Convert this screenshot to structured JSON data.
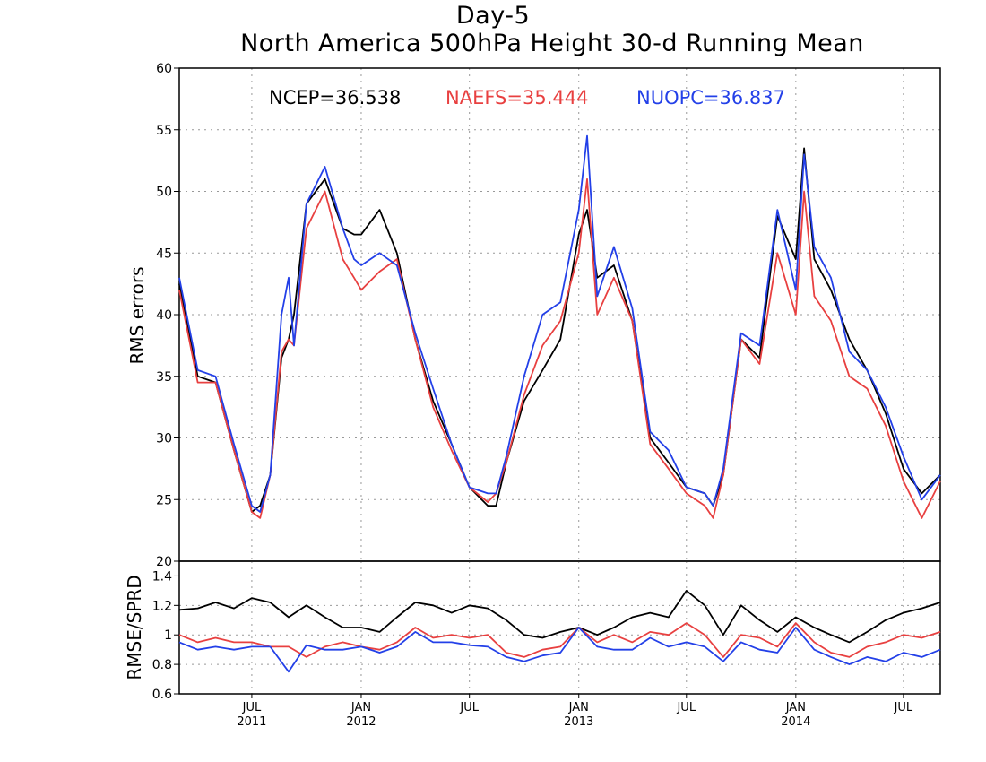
{
  "title": "Day-5",
  "subtitle": "North America 500hPa Height 30-d Running Mean",
  "colors": {
    "NCEP": "#000000",
    "NAEFS": "#e84040",
    "NUOPC": "#2340e8"
  },
  "legend_text": [
    {
      "series": "NCEP",
      "text": "NCEP=36.538"
    },
    {
      "series": "NAEFS",
      "text": "NAEFS=35.444"
    },
    {
      "series": "NUOPC",
      "text": "NUOPC=36.837"
    }
  ],
  "chart_data": [
    {
      "type": "line",
      "ylabel": "RMS errors",
      "ylim": [
        20,
        60
      ],
      "yticks": [
        20,
        25,
        30,
        35,
        40,
        45,
        50,
        55,
        60
      ],
      "xlim": [
        "2011-03-01",
        "2014-09-01"
      ],
      "grid": true,
      "legend_placement": "top-center",
      "x": [
        "2011-03-01",
        "2011-04-01",
        "2011-05-01",
        "2011-06-01",
        "2011-07-01",
        "2011-07-15",
        "2011-08-01",
        "2011-08-20",
        "2011-09-01",
        "2011-09-10",
        "2011-10-01",
        "2011-11-01",
        "2011-12-01",
        "2011-12-20",
        "2012-01-01",
        "2012-02-01",
        "2012-03-01",
        "2012-04-01",
        "2012-05-01",
        "2012-06-01",
        "2012-07-01",
        "2012-08-01",
        "2012-08-15",
        "2012-09-01",
        "2012-10-01",
        "2012-11-01",
        "2012-12-01",
        "2013-01-01",
        "2013-01-15",
        "2013-02-01",
        "2013-03-01",
        "2013-04-01",
        "2013-05-01",
        "2013-06-01",
        "2013-07-01",
        "2013-08-01",
        "2013-08-15",
        "2013-09-01",
        "2013-10-01",
        "2013-11-01",
        "2013-12-01",
        "2014-01-01",
        "2014-01-15",
        "2014-02-01",
        "2014-03-01",
        "2014-04-01",
        "2014-05-01",
        "2014-06-01",
        "2014-07-01",
        "2014-08-01",
        "2014-09-01"
      ],
      "series": [
        {
          "name": "NCEP",
          "values": [
            42.5,
            35.0,
            34.5,
            29.0,
            24.0,
            24.5,
            27.0,
            36.5,
            38.0,
            40.0,
            49.0,
            51.0,
            47.0,
            46.5,
            46.5,
            48.5,
            45.0,
            38.0,
            33.0,
            29.5,
            26.0,
            24.5,
            24.5,
            28.0,
            33.0,
            35.5,
            38.0,
            46.5,
            48.5,
            43.0,
            44.0,
            39.5,
            30.0,
            28.0,
            26.0,
            25.5,
            24.5,
            27.0,
            38.0,
            36.5,
            48.0,
            44.5,
            53.5,
            44.5,
            42.0,
            38.0,
            35.5,
            32.0,
            27.5,
            25.5,
            27.0
          ]
        },
        {
          "name": "NAEFS",
          "values": [
            42.0,
            34.5,
            34.5,
            29.0,
            24.0,
            23.5,
            27.0,
            37.0,
            38.0,
            37.5,
            47.0,
            50.0,
            44.5,
            43.0,
            42.0,
            43.5,
            44.5,
            38.0,
            32.5,
            29.0,
            26.0,
            24.8,
            25.5,
            28.0,
            33.5,
            37.5,
            39.5,
            45.0,
            51.0,
            40.0,
            43.0,
            39.5,
            29.5,
            27.5,
            25.5,
            24.5,
            23.5,
            27.0,
            38.0,
            36.0,
            45.0,
            40.0,
            50.0,
            41.5,
            39.5,
            35.0,
            34.0,
            31.0,
            26.5,
            23.5,
            26.5
          ]
        },
        {
          "name": "NUOPC",
          "values": [
            43.0,
            35.5,
            35.0,
            29.5,
            24.5,
            24.0,
            27.0,
            40.0,
            43.0,
            37.5,
            49.0,
            52.0,
            47.0,
            44.5,
            44.0,
            45.0,
            44.0,
            38.5,
            34.0,
            29.5,
            26.0,
            25.5,
            25.5,
            28.5,
            35.0,
            40.0,
            41.0,
            48.5,
            54.5,
            41.5,
            45.5,
            40.5,
            30.5,
            29.0,
            26.0,
            25.5,
            24.5,
            27.5,
            38.5,
            37.5,
            48.5,
            42.0,
            53.0,
            45.5,
            43.0,
            37.0,
            35.5,
            32.5,
            28.5,
            25.0,
            27.0
          ]
        }
      ]
    },
    {
      "type": "line",
      "ylabel": "RMSE/SPRD",
      "ylim": [
        0.6,
        1.5
      ],
      "yticks": [
        0.6,
        0.8,
        1,
        1.2,
        1.4
      ],
      "ytick_labels": [
        "0.6",
        "0.8",
        "1",
        "1.2",
        "1.4"
      ],
      "xlim": [
        "2011-03-01",
        "2014-09-01"
      ],
      "grid": true,
      "x_ticks": [
        {
          "date": "2011-07-01",
          "label": "JUL",
          "year": "2011"
        },
        {
          "date": "2012-01-01",
          "label": "JAN",
          "year": "2012"
        },
        {
          "date": "2012-07-01",
          "label": "JUL",
          "year": ""
        },
        {
          "date": "2013-01-01",
          "label": "JAN",
          "year": "2013"
        },
        {
          "date": "2013-07-01",
          "label": "JUL",
          "year": ""
        },
        {
          "date": "2014-01-01",
          "label": "JAN",
          "year": "2014"
        },
        {
          "date": "2014-07-01",
          "label": "JUL",
          "year": ""
        }
      ],
      "x": [
        "2011-03-01",
        "2011-04-01",
        "2011-05-01",
        "2011-06-01",
        "2011-07-01",
        "2011-08-01",
        "2011-09-01",
        "2011-10-01",
        "2011-11-01",
        "2011-12-01",
        "2012-01-01",
        "2012-02-01",
        "2012-03-01",
        "2012-04-01",
        "2012-05-01",
        "2012-06-01",
        "2012-07-01",
        "2012-08-01",
        "2012-09-01",
        "2012-10-01",
        "2012-11-01",
        "2012-12-01",
        "2013-01-01",
        "2013-02-01",
        "2013-03-01",
        "2013-04-01",
        "2013-05-01",
        "2013-06-01",
        "2013-07-01",
        "2013-08-01",
        "2013-09-01",
        "2013-10-01",
        "2013-11-01",
        "2013-12-01",
        "2014-01-01",
        "2014-02-01",
        "2014-03-01",
        "2014-04-01",
        "2014-05-01",
        "2014-06-01",
        "2014-07-01",
        "2014-08-01",
        "2014-09-01"
      ],
      "series": [
        {
          "name": "NCEP",
          "values": [
            1.17,
            1.18,
            1.22,
            1.18,
            1.25,
            1.22,
            1.12,
            1.2,
            1.12,
            1.05,
            1.05,
            1.02,
            1.12,
            1.22,
            1.2,
            1.15,
            1.2,
            1.18,
            1.1,
            1.0,
            0.98,
            1.02,
            1.05,
            1.0,
            1.05,
            1.12,
            1.15,
            1.12,
            1.3,
            1.2,
            1.0,
            1.2,
            1.1,
            1.02,
            1.12,
            1.05,
            1.0,
            0.95,
            1.02,
            1.1,
            1.15,
            1.18,
            1.22
          ]
        },
        {
          "name": "NAEFS",
          "values": [
            1.0,
            0.95,
            0.98,
            0.95,
            0.95,
            0.92,
            0.92,
            0.85,
            0.92,
            0.95,
            0.92,
            0.9,
            0.95,
            1.05,
            0.98,
            1.0,
            0.98,
            1.0,
            0.88,
            0.85,
            0.9,
            0.92,
            1.05,
            0.95,
            1.0,
            0.95,
            1.02,
            1.0,
            1.08,
            1.0,
            0.85,
            1.0,
            0.98,
            0.92,
            1.08,
            0.95,
            0.88,
            0.85,
            0.92,
            0.95,
            1.0,
            0.98,
            1.02
          ]
        },
        {
          "name": "NUOPC",
          "values": [
            0.95,
            0.9,
            0.92,
            0.9,
            0.92,
            0.92,
            0.75,
            0.93,
            0.9,
            0.9,
            0.92,
            0.88,
            0.92,
            1.02,
            0.95,
            0.95,
            0.93,
            0.92,
            0.85,
            0.82,
            0.86,
            0.88,
            1.05,
            0.92,
            0.9,
            0.9,
            0.98,
            0.92,
            0.95,
            0.92,
            0.82,
            0.95,
            0.9,
            0.88,
            1.05,
            0.9,
            0.85,
            0.8,
            0.85,
            0.82,
            0.88,
            0.85,
            0.9
          ]
        }
      ]
    }
  ]
}
